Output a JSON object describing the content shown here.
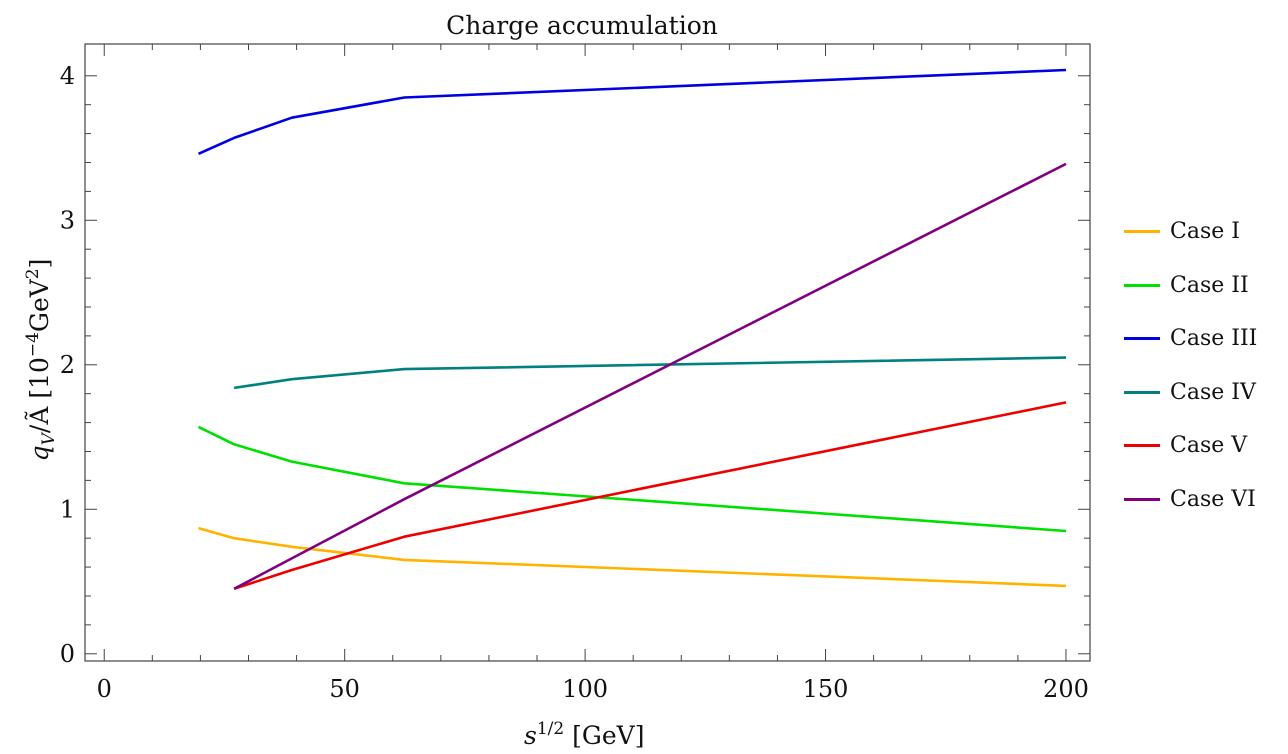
{
  "chart_data": {
    "type": "line",
    "title": "Charge accumulation",
    "xlabel": "s^1/2 [GeV]",
    "ylabel": "q_V/Ã [10^-4 GeV^2]",
    "xlim": [
      -4,
      205
    ],
    "ylim": [
      -0.05,
      4.22
    ],
    "x_ticks": [
      "0",
      "50",
      "100",
      "150",
      "200"
    ],
    "y_ticks": [
      "0",
      "1",
      "2",
      "3",
      "4"
    ],
    "grid": false,
    "legend_position": "right",
    "series": [
      {
        "name": "Case I",
        "color": "#FFB300",
        "x": [
          19.6,
          27,
          39,
          62.4,
          200
        ],
        "y": [
          0.87,
          0.8,
          0.74,
          0.65,
          0.47
        ]
      },
      {
        "name": "Case II",
        "color": "#00E000",
        "x": [
          19.6,
          27,
          39,
          62.4,
          200
        ],
        "y": [
          1.57,
          1.45,
          1.33,
          1.18,
          0.85
        ]
      },
      {
        "name": "Case III",
        "color": "#0000E0",
        "x": [
          19.6,
          27,
          39,
          62.4,
          200
        ],
        "y": [
          3.46,
          3.57,
          3.71,
          3.85,
          4.04
        ]
      },
      {
        "name": "Case IV",
        "color": "#008080",
        "x": [
          27,
          39,
          62.4,
          200
        ],
        "y": [
          1.84,
          1.9,
          1.97,
          2.05
        ]
      },
      {
        "name": "Case V",
        "color": "#EE0000",
        "x": [
          27,
          39,
          62.4,
          200
        ],
        "y": [
          0.45,
          0.58,
          0.81,
          1.74
        ]
      },
      {
        "name": "Case VI",
        "color": "#800080",
        "x": [
          27,
          39,
          62.4,
          200
        ],
        "y": [
          0.45,
          0.66,
          1.07,
          3.39
        ]
      }
    ]
  }
}
